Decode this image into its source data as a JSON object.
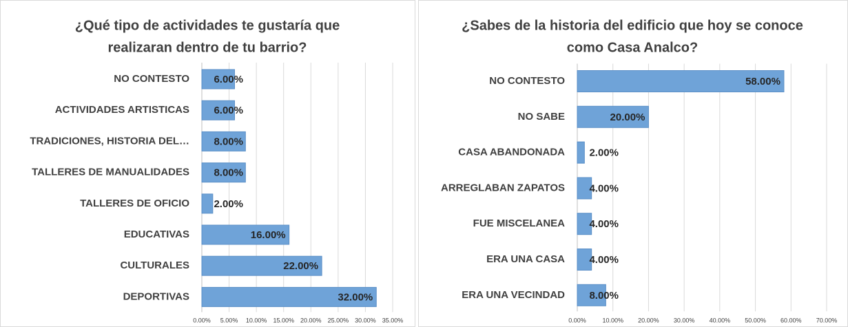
{
  "chart_data": [
    {
      "type": "bar",
      "orientation": "horizontal",
      "title": [
        "¿Qué tipo de actividades te gustaría que",
        "realizaran dentro de tu barrio?"
      ],
      "categories": [
        "NO CONTESTO",
        "ACTIVIDADES ARTISTICAS",
        "TRADICIONES, HISTORIA DEL…",
        "TALLERES DE MANUALIDADES",
        "TALLERES DE OFICIO",
        "EDUCATIVAS",
        "CULTURALES",
        "DEPORTIVAS"
      ],
      "values": [
        6,
        6,
        8,
        8,
        2,
        16,
        22,
        32
      ],
      "value_labels": [
        "6.00%",
        "6.00%",
        "8.00%",
        "8.00%",
        "2.00%",
        "16.00%",
        "22.00%",
        "32.00%"
      ],
      "color": "#6fa3d8",
      "xlim": [
        0,
        35
      ],
      "xticks": [
        {
          "value": 0,
          "label": "0.00%"
        },
        {
          "value": 5,
          "label": "5.00%"
        },
        {
          "value": 10,
          "label": "10.00%"
        },
        {
          "value": 15,
          "label": "15.00%"
        },
        {
          "value": 20,
          "label": "20.00%"
        },
        {
          "value": 25,
          "label": "25.00%"
        },
        {
          "value": 30,
          "label": "30.00%"
        },
        {
          "value": 35,
          "label": "35.00%"
        }
      ],
      "grid": true
    },
    {
      "type": "bar",
      "orientation": "horizontal",
      "title": [
        "¿Sabes de la historia del edificio que hoy se conoce",
        "como Casa Analco?"
      ],
      "categories": [
        "NO CONTESTO",
        "NO SABE",
        "CASA ABANDONADA",
        "ARREGLABAN ZAPATOS",
        "FUE MISCELANEA",
        "ERA UNA CASA",
        "ERA UNA VECINDAD"
      ],
      "values": [
        58,
        20,
        2,
        4,
        4,
        4,
        8
      ],
      "value_labels": [
        "58.00%",
        "20.00%",
        "2.00%",
        "4.00%",
        "4.00%",
        "4.00%",
        "8.00%"
      ],
      "color": "#6fa3d8",
      "xlim": [
        0,
        70
      ],
      "xticks": [
        {
          "value": 0,
          "label": "0.00%"
        },
        {
          "value": 10,
          "label": "10.00%"
        },
        {
          "value": 20,
          "label": "20.00%"
        },
        {
          "value": 30,
          "label": "30.00%"
        },
        {
          "value": 40,
          "label": "40.00%"
        },
        {
          "value": 50,
          "label": "50.00%"
        },
        {
          "value": 60,
          "label": "60.00%"
        },
        {
          "value": 70,
          "label": "70.00%"
        }
      ],
      "grid": true
    }
  ]
}
